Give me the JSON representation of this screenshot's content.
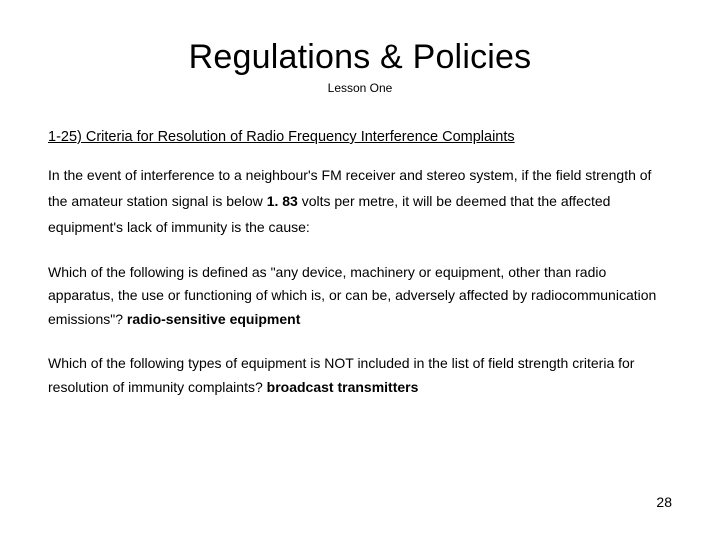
{
  "background_color": "#ffffff",
  "text_color": "#000000",
  "title": {
    "text": "Regulations & Policies",
    "fontsize": 34
  },
  "subtitle": {
    "text": "Lesson One",
    "fontsize": 12
  },
  "section_heading": {
    "text": "1-25)  Criteria for Resolution of Radio Frequency Interference Complaints",
    "fontsize": 14.5,
    "underline": true
  },
  "paragraph1": {
    "pre": "In the event of interference to a neighbour's FM receiver and stereo system, if the field strength of the amateur station signal is below ",
    "value": "1. 83",
    "post": "  volts per metre, it will be deemed that the affected equipment's lack of immunity is the cause:",
    "fontsize": 14
  },
  "paragraph2": {
    "text": "Which of the following is defined as \"any device, machinery or equipment, other than radio apparatus, the use or functioning of which is, or can be, adversely affected by radiocommunication emissions\"?  ",
    "answer": "radio-sensitive equipment",
    "fontsize": 14
  },
  "paragraph3": {
    "text": "Which of the following types of equipment is NOT included in the list of field strength criteria for resolution of immunity complaints?  ",
    "answer": "broadcast transmitters",
    "fontsize": 14
  },
  "page_number": "28"
}
